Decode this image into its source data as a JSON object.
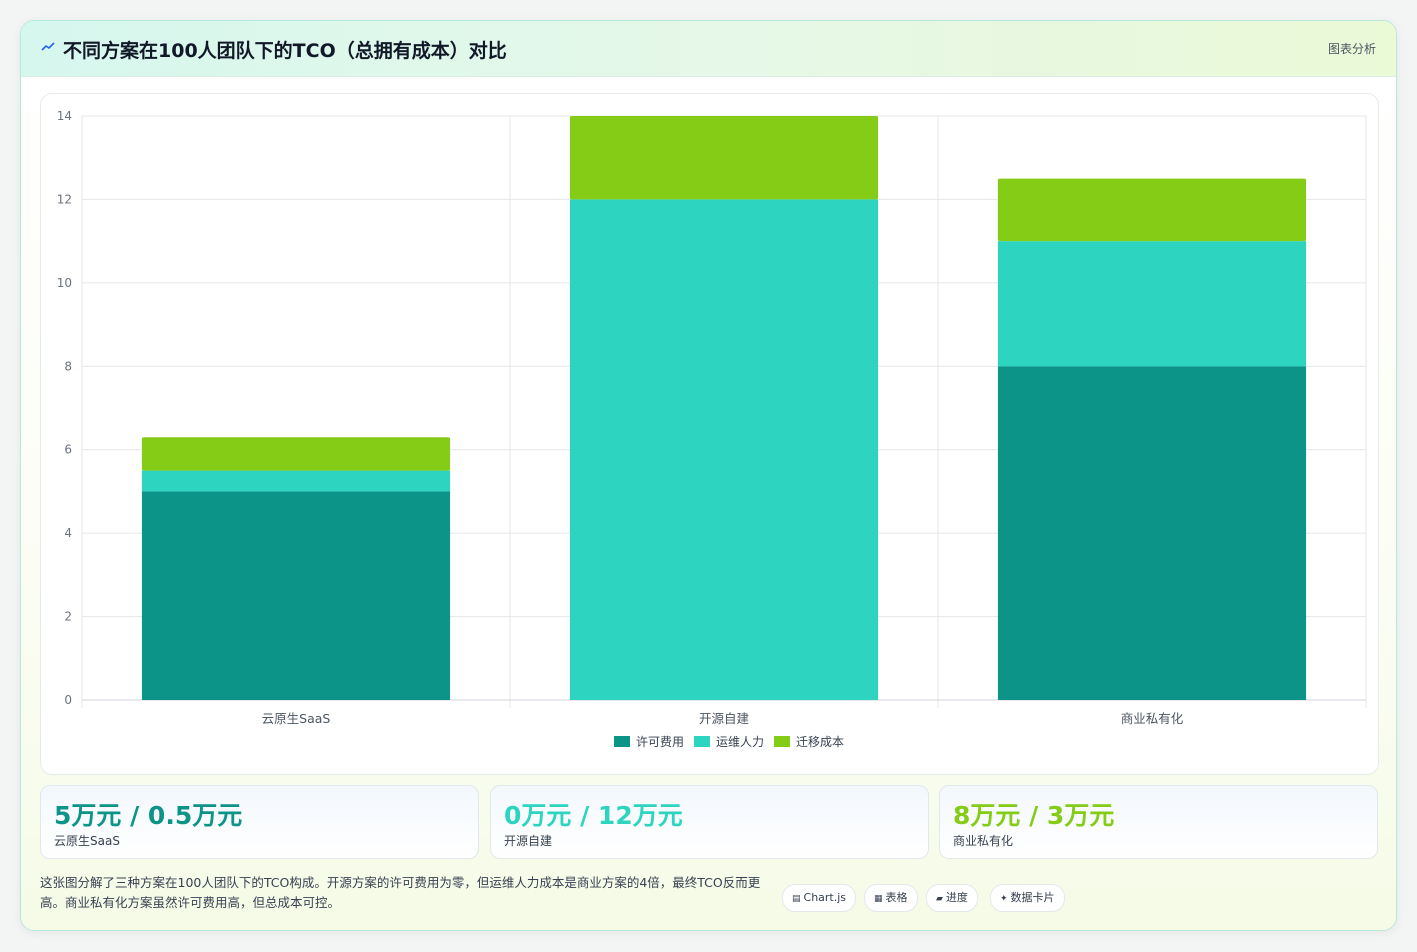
{
  "header": {
    "title": "不同方案在100人团队下的TCO（总拥有成本）对比",
    "tag": "图表分析",
    "icon": "chart-line-icon"
  },
  "chart_data": {
    "type": "bar",
    "stacked": true,
    "categories": [
      "云原生SaaS",
      "开源自建",
      "商业私有化"
    ],
    "series": [
      {
        "name": "许可费用",
        "color": "#0d9488",
        "values": [
          5,
          0,
          8
        ]
      },
      {
        "name": "运维人力",
        "color": "#2dd4bf",
        "values": [
          0.5,
          12,
          3
        ]
      },
      {
        "name": "迁移成本",
        "color": "#84cc16",
        "values": [
          0.8,
          2,
          1.5
        ]
      }
    ],
    "ylim": [
      0,
      14
    ],
    "yticks": [
      0,
      2,
      4,
      6,
      8,
      10,
      12,
      14
    ],
    "grid": true,
    "legend": "bottom"
  },
  "stats": [
    {
      "value": "5万元 / 0.5万元",
      "label": "云原生SaaS",
      "color": "#0d9488"
    },
    {
      "value": "0万元 / 12万元",
      "label": "开源自建",
      "color": "#2dd4bf"
    },
    {
      "value": "8万元 / 3万元",
      "label": "商业私有化",
      "color": "#84cc16"
    }
  ],
  "description": "这张图分解了三种方案在100人团队下的TCO构成。开源方案的许可费用为零，但运维人力成本是商业方案的4倍，最终TCO反而更高。商业私有化方案虽然许可费用高，但总成本可控。",
  "chips": [
    {
      "glyph": "▤",
      "label": "Chart.js"
    },
    {
      "glyph": "▦",
      "label": "表格"
    },
    {
      "glyph": "▰",
      "label": "进度"
    },
    {
      "glyph": "✦",
      "label": "数据卡片"
    }
  ]
}
